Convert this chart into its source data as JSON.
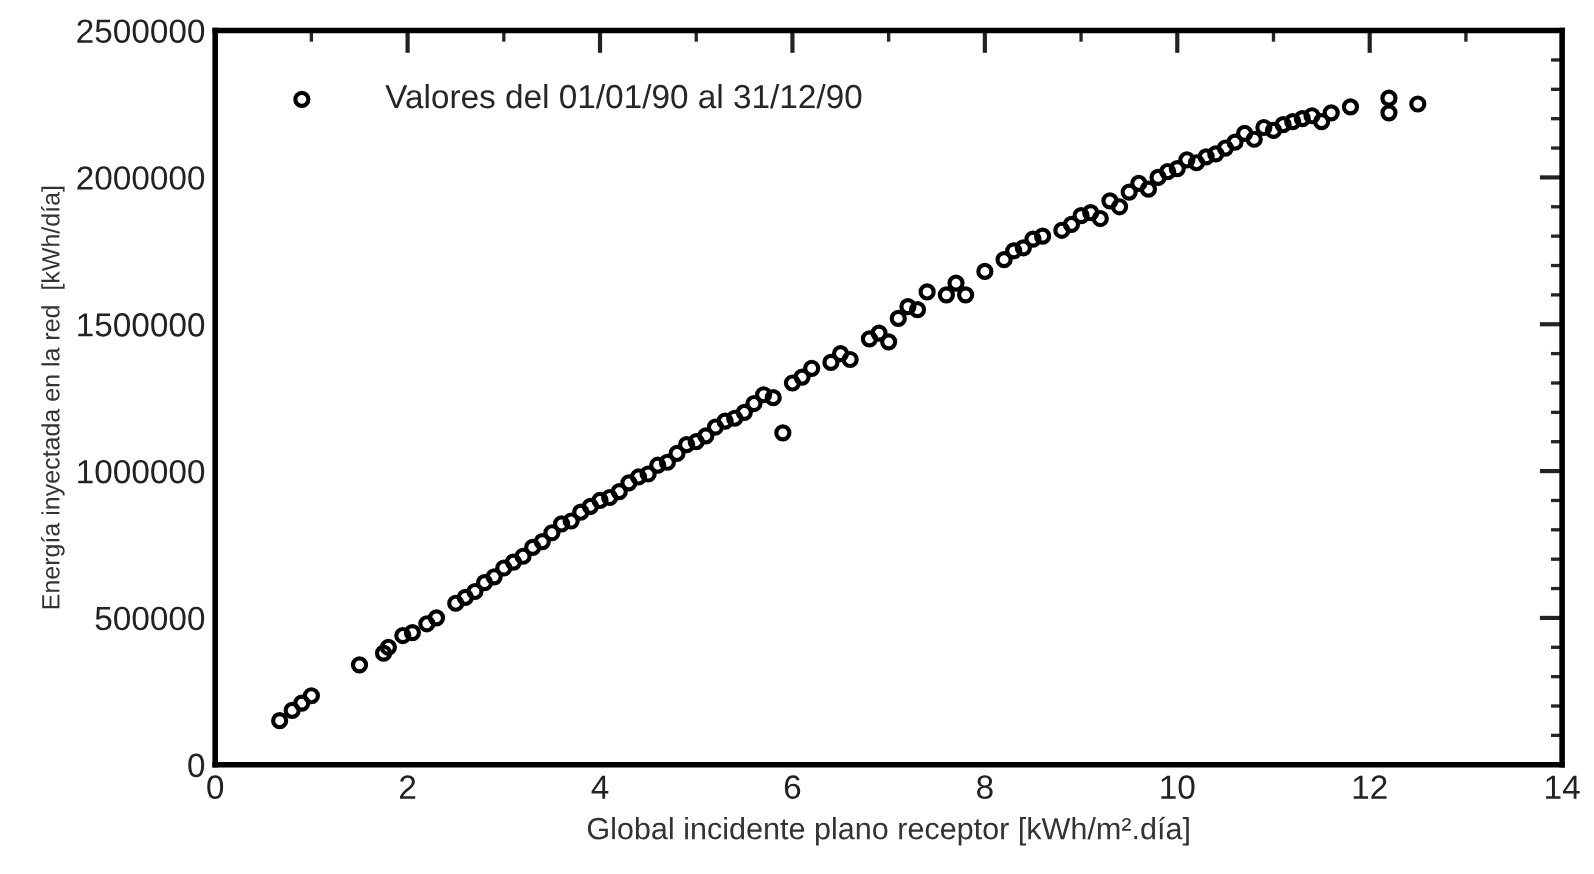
{
  "chart_data": {
    "type": "scatter",
    "xlabel": "Global incidente plano receptor [kWh/m².día]",
    "ylabel": "Energía inyectada en la red  [kWh/día]",
    "xlim": [
      0,
      14
    ],
    "xticks": [
      0,
      2,
      4,
      6,
      8,
      10,
      12,
      14
    ],
    "ylim": [
      0,
      2500000
    ],
    "yticks": [
      0,
      500000,
      1000000,
      1500000,
      2000000,
      2500000
    ],
    "marker": "circle",
    "legend": "top left",
    "grid": false,
    "series": [
      {
        "name": "Valores del 01/01/90 al 31/12/90",
        "color": "#000000",
        "x": [
          0.67,
          0.8,
          0.9,
          1.0,
          1.5,
          1.75,
          1.8,
          1.95,
          2.05,
          2.2,
          2.3,
          2.5,
          2.6,
          2.7,
          2.8,
          2.9,
          3.0,
          3.1,
          3.2,
          3.3,
          3.4,
          3.5,
          3.6,
          3.7,
          3.8,
          3.9,
          4.0,
          4.1,
          4.2,
          4.3,
          4.4,
          4.5,
          4.6,
          4.7,
          4.8,
          4.9,
          5.0,
          5.1,
          5.2,
          5.3,
          5.4,
          5.5,
          5.6,
          5.7,
          5.8,
          5.9,
          6.0,
          6.1,
          6.2,
          6.4,
          6.5,
          6.6,
          6.8,
          6.9,
          7.0,
          7.1,
          7.2,
          7.3,
          7.4,
          7.6,
          7.7,
          7.8,
          8.0,
          8.2,
          8.3,
          8.4,
          8.5,
          8.6,
          8.8,
          8.9,
          9.0,
          9.1,
          9.2,
          9.3,
          9.4,
          9.5,
          9.6,
          9.7,
          9.8,
          9.9,
          10.0,
          10.1,
          10.2,
          10.3,
          10.4,
          10.5,
          10.6,
          10.7,
          10.8,
          10.9,
          11.0,
          11.1,
          11.2,
          11.3,
          11.4,
          11.5,
          11.6,
          11.8,
          12.2,
          12.2,
          12.5
        ],
        "values": [
          150000,
          185000,
          210000,
          235000,
          340000,
          380000,
          400000,
          440000,
          450000,
          480000,
          500000,
          550000,
          570000,
          590000,
          620000,
          640000,
          670000,
          690000,
          710000,
          740000,
          760000,
          790000,
          820000,
          830000,
          860000,
          880000,
          900000,
          910000,
          930000,
          960000,
          980000,
          990000,
          1020000,
          1030000,
          1060000,
          1090000,
          1100000,
          1120000,
          1150000,
          1170000,
          1180000,
          1200000,
          1230000,
          1260000,
          1250000,
          1130000,
          1300000,
          1320000,
          1350000,
          1370000,
          1400000,
          1380000,
          1450000,
          1470000,
          1440000,
          1520000,
          1560000,
          1550000,
          1610000,
          1600000,
          1640000,
          1600000,
          1680000,
          1720000,
          1750000,
          1760000,
          1790000,
          1800000,
          1820000,
          1840000,
          1870000,
          1880000,
          1860000,
          1920000,
          1900000,
          1950000,
          1980000,
          1960000,
          2000000,
          2020000,
          2030000,
          2060000,
          2050000,
          2070000,
          2080000,
          2100000,
          2120000,
          2150000,
          2130000,
          2170000,
          2160000,
          2180000,
          2190000,
          2200000,
          2210000,
          2190000,
          2220000,
          2240000,
          2270000,
          2220000,
          2250000
        ]
      }
    ]
  }
}
